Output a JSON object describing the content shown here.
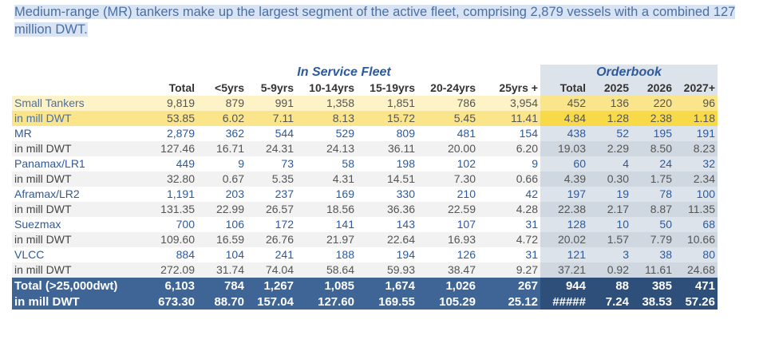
{
  "caption": "Medium-range (MR) tankers make up the largest segment of the active fleet, comprising 2,879 vessels with a combined 127 million DWT.",
  "groups": {
    "in_service": "In Service Fleet",
    "orderbook": "Orderbook"
  },
  "headers": [
    "Total",
    "<5yrs",
    "5-9yrs",
    "10-14yrs",
    "15-19yrs",
    "20-24yrs",
    "25yrs +",
    "Total",
    "2025",
    "2026",
    "2027+"
  ],
  "rows": [
    {
      "label": "Small Tankers",
      "values": [
        "9,819",
        "879",
        "991",
        "1,358",
        "1,851",
        "786",
        "3,954",
        "452",
        "136",
        "220",
        "96"
      ]
    },
    {
      "label": "in mill DWT",
      "values": [
        "53.85",
        "6.02",
        "7.11",
        "8.13",
        "15.72",
        "5.45",
        "11.41",
        "4.84",
        "1.28",
        "2.38",
        "1.18"
      ]
    },
    {
      "label": "MR",
      "values": [
        "2,879",
        "362",
        "544",
        "529",
        "809",
        "481",
        "154",
        "438",
        "52",
        "195",
        "191"
      ]
    },
    {
      "label": "in mill DWT",
      "values": [
        "127.46",
        "16.71",
        "24.31",
        "24.13",
        "36.11",
        "20.00",
        "6.20",
        "19.03",
        "2.29",
        "8.50",
        "8.23"
      ]
    },
    {
      "label": "Panamax/LR1",
      "values": [
        "449",
        "9",
        "73",
        "58",
        "198",
        "102",
        "9",
        "60",
        "4",
        "24",
        "32"
      ]
    },
    {
      "label": "in mill DWT",
      "values": [
        "32.80",
        "0.67",
        "5.35",
        "4.31",
        "14.51",
        "7.30",
        "0.66",
        "4.39",
        "0.30",
        "1.75",
        "2.34"
      ]
    },
    {
      "label": "Aframax/LR2",
      "values": [
        "1,191",
        "203",
        "237",
        "169",
        "330",
        "210",
        "42",
        "197",
        "19",
        "78",
        "100"
      ]
    },
    {
      "label": "in mill DWT",
      "values": [
        "131.35",
        "22.99",
        "26.57",
        "18.56",
        "36.36",
        "22.59",
        "4.28",
        "22.38",
        "2.17",
        "8.87",
        "11.35"
      ]
    },
    {
      "label": "Suezmax",
      "values": [
        "700",
        "106",
        "172",
        "141",
        "143",
        "107",
        "31",
        "128",
        "10",
        "50",
        "68"
      ]
    },
    {
      "label": "in mill DWT",
      "values": [
        "109.60",
        "16.59",
        "26.76",
        "21.97",
        "22.64",
        "16.93",
        "4.72",
        "20.02",
        "1.57",
        "7.79",
        "10.66"
      ]
    },
    {
      "label": "VLCC",
      "values": [
        "884",
        "104",
        "241",
        "188",
        "194",
        "126",
        "31",
        "121",
        "3",
        "38",
        "80"
      ]
    },
    {
      "label": "in mill DWT",
      "values": [
        "272.09",
        "31.74",
        "74.04",
        "58.64",
        "59.93",
        "38.47",
        "9.27",
        "37.21",
        "0.92",
        "11.61",
        "24.68"
      ]
    },
    {
      "label": "Total (>25,000dwt)",
      "values": [
        "6,103",
        "784",
        "1,267",
        "1,085",
        "1,674",
        "1,026",
        "267",
        "944",
        "88",
        "385",
        "471"
      ]
    },
    {
      "label": "in mill DWT",
      "values": [
        "673.30",
        "88.70",
        "157.04",
        "127.60",
        "169.55",
        "105.29",
        "25.12",
        "#####",
        "7.24",
        "38.53",
        "57.26"
      ]
    }
  ]
}
